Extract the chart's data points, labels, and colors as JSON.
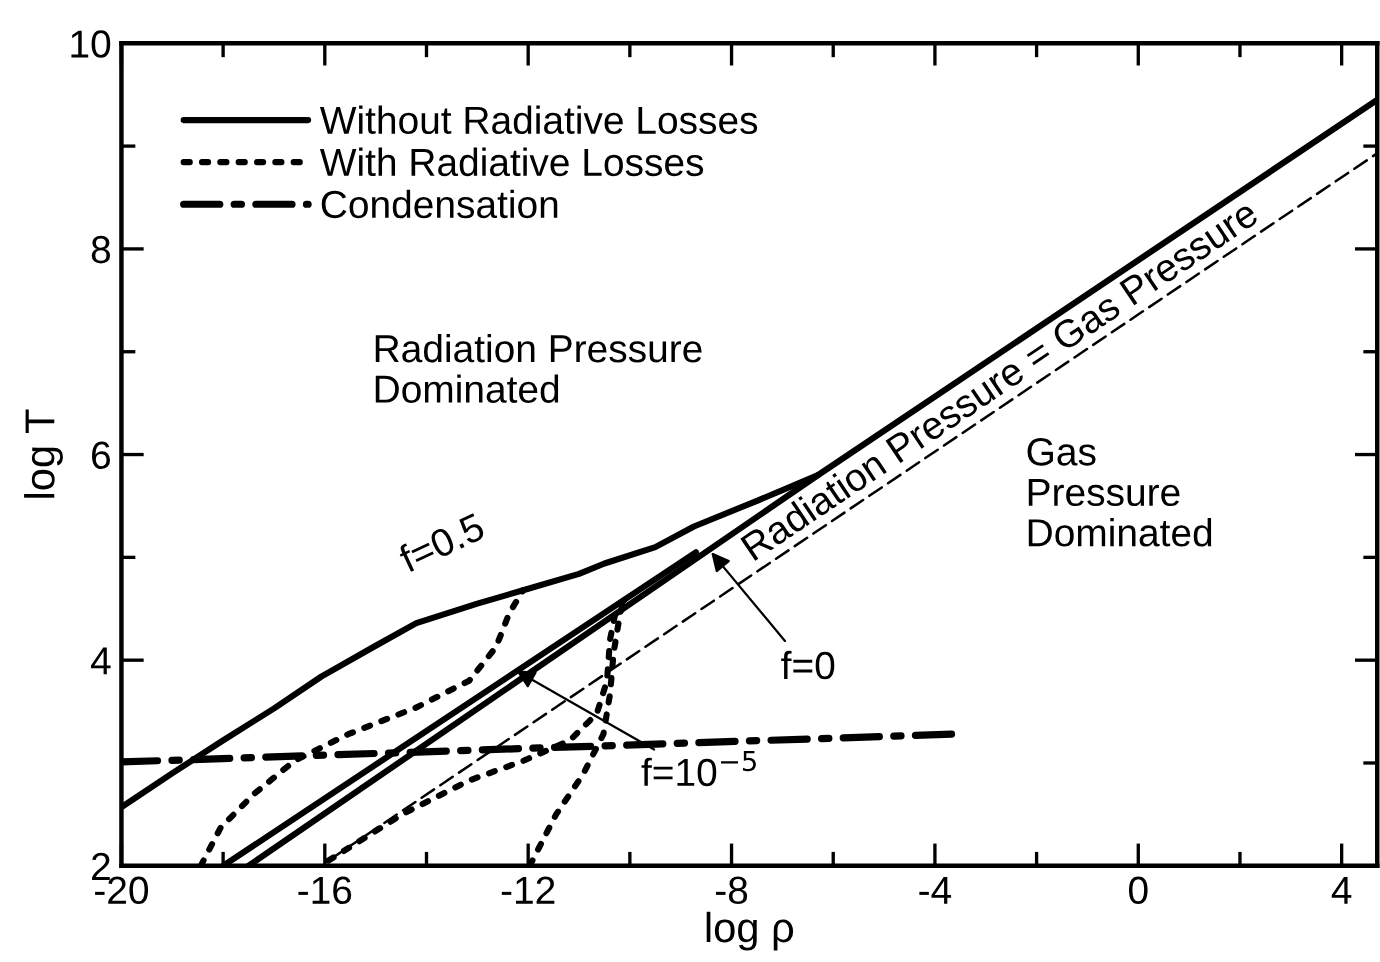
{
  "chart_data": {
    "type": "line",
    "xlabel": "log ρ",
    "ylabel": "log T",
    "xlim": [
      -20,
      4.7
    ],
    "ylim": [
      2,
      10
    ],
    "xticks": [
      -20,
      {
        "value": -18,
        "label": null
      },
      -16,
      {
        "value": -14,
        "label": null
      },
      -12,
      {
        "value": -10,
        "label": null
      },
      -8,
      {
        "value": -6,
        "label": null
      },
      -4,
      {
        "value": -2,
        "label": null
      },
      0,
      {
        "value": 2,
        "label": null
      },
      4
    ],
    "yticks": [
      2,
      {
        "value": 3,
        "label": null
      },
      4,
      {
        "value": 5,
        "label": null
      },
      6,
      {
        "value": 7,
        "label": null
      },
      8,
      {
        "value": 9,
        "label": null
      },
      10
    ],
    "grid": false,
    "legend": "top left",
    "series": [
      {
        "name": "Without Radiative Losses",
        "color": "#000000",
        "line_style": "solid",
        "x": [
          -20,
          -19,
          -18,
          -17,
          -16.07,
          -15,
          -14.2,
          -13,
          -12.1,
          -11,
          -10.5,
          -9.5,
          -8.74,
          -7.5,
          -6.3,
          4.7
        ],
        "values": [
          2.57,
          2.9,
          3.22,
          3.53,
          3.84,
          4.14,
          4.36,
          4.55,
          4.68,
          4.84,
          4.94,
          5.1,
          5.3,
          5.55,
          5.8,
          9.45
        ]
      },
      {
        "color": "#000000",
        "line_style": "solid",
        "x": [
          -18.0,
          -8.7
        ],
        "values": [
          2,
          5.05
        ]
      },
      {
        "color": "#000000",
        "line_style": "solid",
        "x": [
          -17.5,
          -6.3
        ],
        "values": [
          2,
          5.8
        ]
      },
      {
        "name": "With Radiative Losses",
        "color": "#000000",
        "line_style": "dotted",
        "x": [
          -18.44,
          -18.05,
          -17.39,
          -16.6,
          -15.54,
          -14.2,
          -13.16,
          -12.63,
          -12.37,
          -12.1
        ],
        "values": [
          2,
          2.37,
          2.7,
          3.02,
          3.28,
          3.54,
          3.8,
          4.13,
          4.46,
          4.68
        ]
      },
      {
        "color": "#000000",
        "line_style": "dotted",
        "x": [
          -15.93,
          -14.48,
          -13.16,
          -12.1,
          -11.18,
          -10.65,
          -10.45,
          -10.39,
          -10.26,
          -10.1
        ],
        "values": [
          2.05,
          2.5,
          2.83,
          3.02,
          3.22,
          3.48,
          3.8,
          4.2,
          4.52,
          4.59
        ]
      },
      {
        "color": "#000000",
        "line_style": "dotted",
        "x": [
          -11.97,
          -11.45,
          -10.92,
          -10.52,
          -10.39,
          -10.32,
          -10.19,
          -10.1
        ],
        "values": [
          2,
          2.5,
          2.89,
          3.28,
          3.67,
          4.07,
          4.46,
          4.59
        ]
      },
      {
        "name": "Condensation",
        "color": "#000000",
        "line_style": "dashdot",
        "x": [
          -20,
          -3.67
        ],
        "values": [
          3.01,
          3.28
        ]
      },
      {
        "color": "#000000",
        "line_style": "dashed",
        "x": [
          -15.93,
          4.7
        ],
        "values": [
          2.05,
          8.93
        ]
      }
    ],
    "annotations": [
      {
        "text": "f=0.5",
        "x": -12.3,
        "y": 4.72
      },
      {
        "text": "f=0",
        "x": -8.4,
        "y": 5.05
      },
      {
        "text": "f=10$^{−5}$",
        "x": -12.24,
        "y": 3.9
      },
      {
        "text": "Radiation Pressure = Gas Pressure",
        "x": -2.5,
        "y": 6.55
      },
      "Radiation Pressure\nDominated",
      "Gas\nPressure\nDominated"
    ]
  }
}
